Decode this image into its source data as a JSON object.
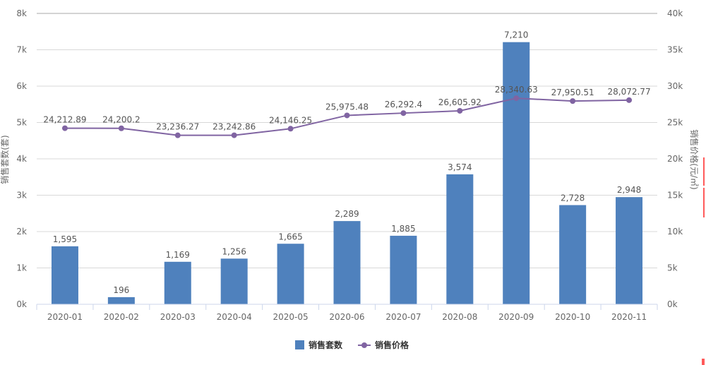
{
  "chart_data": {
    "type": "bar",
    "categories": [
      "2020-01",
      "2020-02",
      "2020-03",
      "2020-04",
      "2020-05",
      "2020-06",
      "2020-07",
      "2020-08",
      "2020-09",
      "2020-10",
      "2020-11"
    ],
    "series": [
      {
        "name": "销售套数",
        "type": "bar",
        "axis": "left",
        "color": "#4f81bd",
        "values": [
          1595,
          196,
          1169,
          1256,
          1665,
          2289,
          1885,
          3574,
          7210,
          2728,
          2948
        ],
        "labels": [
          "1,595",
          "196",
          "1,169",
          "1,256",
          "1,665",
          "2,289",
          "1,885",
          "3,574",
          "7,210",
          "2,728",
          "2,948"
        ]
      },
      {
        "name": "销售价格",
        "type": "line",
        "axis": "right",
        "color": "#8064a2",
        "values": [
          24212.89,
          24200.2,
          23236.27,
          23242.86,
          24146.25,
          25975.48,
          26292.4,
          26605.92,
          28340.63,
          27950.51,
          28072.77
        ],
        "labels": [
          "24,212.89",
          "24,200.2",
          "23,236.27",
          "23,242.86",
          "24,146.25",
          "25,975.48",
          "26,292.4",
          "26,605.92",
          "28,340.63",
          "27,950.51",
          "28,072.77"
        ]
      }
    ],
    "ylabel": "销售套数(套)",
    "y2label": "销售价格(元/㎡)",
    "ylim": [
      0,
      8000
    ],
    "y2lim": [
      0,
      40000
    ],
    "yticks": [
      "0k",
      "1k",
      "2k",
      "3k",
      "4k",
      "5k",
      "6k",
      "7k",
      "8k"
    ],
    "y2ticks": [
      "0k",
      "5k",
      "10k",
      "15k",
      "20k",
      "25k",
      "30k",
      "35k",
      "40k"
    ],
    "grid": true,
    "legend_position": "bottom-center"
  }
}
